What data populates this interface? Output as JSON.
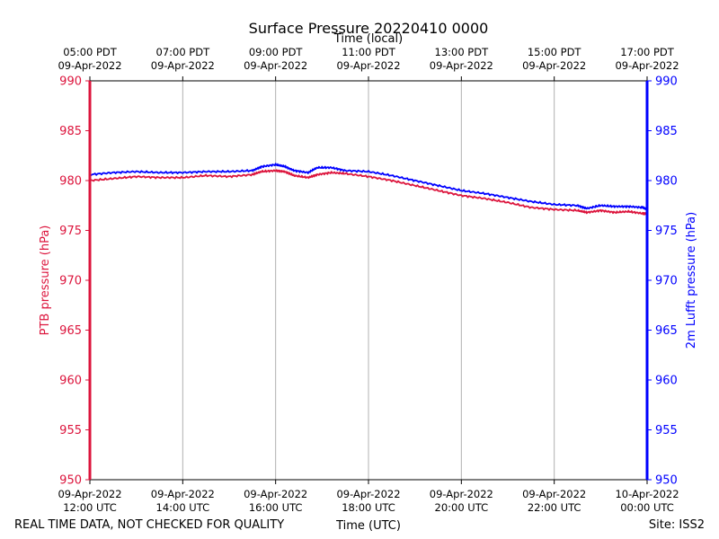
{
  "chart_data": {
    "type": "line",
    "title": "Surface Pressure 20220410 0000",
    "top_xlabel": "Time (local)",
    "xlabel": "Time (UTC)",
    "ylabel_left": "PTB pressure (hPa)",
    "ylabel_right": "2m Lufft pressure (hPa)",
    "left_axis_color": "#dc143c",
    "right_axis_color": "#0000ff",
    "grid_color": "#b0b0b0",
    "ylim": [
      950,
      990
    ],
    "yticks": [
      950,
      955,
      960,
      965,
      970,
      975,
      980,
      985,
      990
    ],
    "xlim_hours_utc": [
      12,
      24
    ],
    "bottom_ticks": [
      {
        "hour": 12,
        "line1": "09-Apr-2022",
        "line2": "12:00 UTC"
      },
      {
        "hour": 14,
        "line1": "09-Apr-2022",
        "line2": "14:00 UTC"
      },
      {
        "hour": 16,
        "line1": "09-Apr-2022",
        "line2": "16:00 UTC"
      },
      {
        "hour": 18,
        "line1": "09-Apr-2022",
        "line2": "18:00 UTC"
      },
      {
        "hour": 20,
        "line1": "09-Apr-2022",
        "line2": "20:00 UTC"
      },
      {
        "hour": 22,
        "line1": "09-Apr-2022",
        "line2": "22:00 UTC"
      },
      {
        "hour": 24,
        "line1": "10-Apr-2022",
        "line2": "00:00 UTC"
      }
    ],
    "top_ticks": [
      {
        "hour": 12,
        "line1": "05:00 PDT",
        "line2": "09-Apr-2022"
      },
      {
        "hour": 14,
        "line1": "07:00 PDT",
        "line2": "09-Apr-2022"
      },
      {
        "hour": 16,
        "line1": "09:00 PDT",
        "line2": "09-Apr-2022"
      },
      {
        "hour": 18,
        "line1": "11:00 PDT",
        "line2": "09-Apr-2022"
      },
      {
        "hour": 20,
        "line1": "13:00 PDT",
        "line2": "09-Apr-2022"
      },
      {
        "hour": 22,
        "line1": "15:00 PDT",
        "line2": "09-Apr-2022"
      },
      {
        "hour": 24,
        "line1": "17:00 PDT",
        "line2": "09-Apr-2022"
      }
    ],
    "series": [
      {
        "name": "PTB pressure",
        "axis": "left",
        "color": "#dc143c",
        "x": [
          12.0,
          12.5,
          13.0,
          13.5,
          14.0,
          14.5,
          15.0,
          15.5,
          15.7,
          16.0,
          16.2,
          16.4,
          16.7,
          16.9,
          17.2,
          17.5,
          18.0,
          18.5,
          19.0,
          19.5,
          20.0,
          20.5,
          21.0,
          21.5,
          22.0,
          22.5,
          22.7,
          23.0,
          23.3,
          23.6,
          23.9,
          24.0
        ],
        "values": [
          980.0,
          980.2,
          980.4,
          980.3,
          980.3,
          980.5,
          980.4,
          980.6,
          980.9,
          981.0,
          980.9,
          980.5,
          980.3,
          980.6,
          980.8,
          980.7,
          980.4,
          980.0,
          979.5,
          979.0,
          978.5,
          978.2,
          977.8,
          977.3,
          977.1,
          977.0,
          976.8,
          977.0,
          976.8,
          976.9,
          976.7,
          976.7
        ]
      },
      {
        "name": "2m Lufft pressure",
        "axis": "right",
        "color": "#0000ff",
        "x": [
          12.0,
          12.5,
          13.0,
          13.5,
          14.0,
          14.5,
          15.0,
          15.5,
          15.7,
          16.0,
          16.2,
          16.4,
          16.7,
          16.9,
          17.2,
          17.5,
          18.0,
          18.5,
          19.0,
          19.5,
          20.0,
          20.5,
          21.0,
          21.5,
          22.0,
          22.5,
          22.7,
          23.0,
          23.3,
          23.6,
          23.9,
          24.0
        ],
        "values": [
          980.6,
          980.8,
          980.9,
          980.8,
          980.8,
          980.9,
          980.9,
          981.0,
          981.4,
          981.6,
          981.4,
          981.0,
          980.8,
          981.3,
          981.3,
          981.0,
          980.9,
          980.5,
          980.0,
          979.5,
          979.0,
          978.7,
          978.3,
          977.9,
          977.6,
          977.5,
          977.2,
          977.5,
          977.4,
          977.4,
          977.3,
          977.1
        ]
      }
    ]
  },
  "footer": {
    "left_note": "REAL TIME DATA, NOT CHECKED FOR QUALITY",
    "site": "Site: ISS2"
  }
}
